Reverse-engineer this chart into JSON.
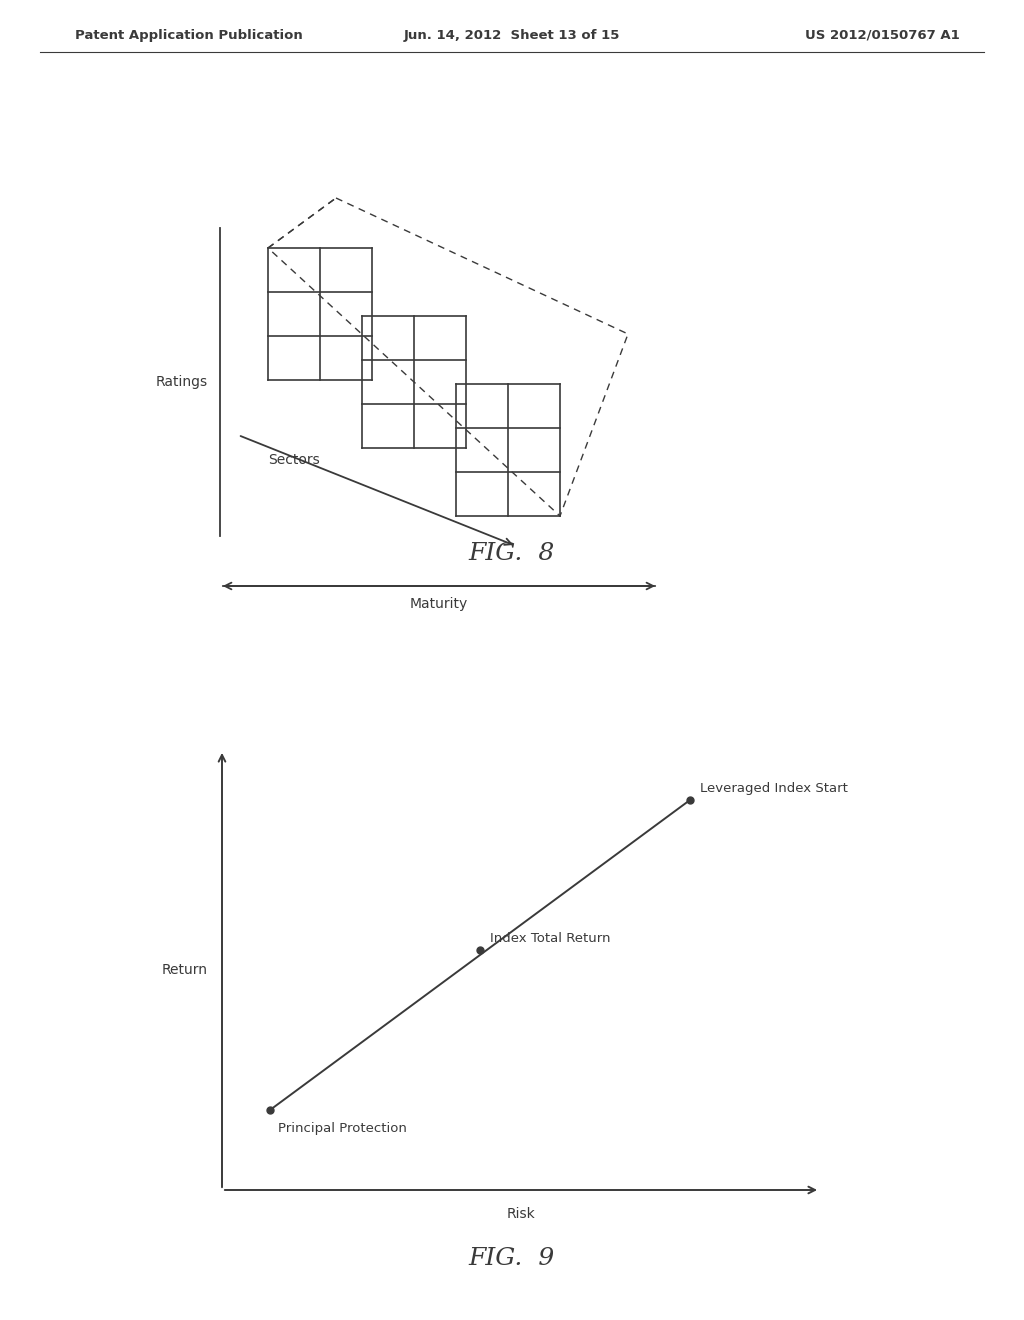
{
  "bg_color": "#ffffff",
  "header_left": "Patent Application Publication",
  "header_center": "Jun. 14, 2012  Sheet 13 of 15",
  "header_right": "US 2012/0150767 A1",
  "header_fontsize": 10,
  "fig8_title": "FIG.  8",
  "fig9_title": "FIG.  9",
  "fig8_ratings_label": "Ratings",
  "fig8_sectors_label": "Sectors",
  "fig8_maturity_label": "Maturity",
  "fig9_return_label": "Return",
  "fig9_risk_label": "Risk",
  "fig9_point1_label": "Principal Protection",
  "fig9_point2_label": "Index Total Return",
  "fig9_point3_label": "Leveraged Index Start",
  "line_color": "#3a3a3a",
  "grid_color": "#3a3a3a"
}
